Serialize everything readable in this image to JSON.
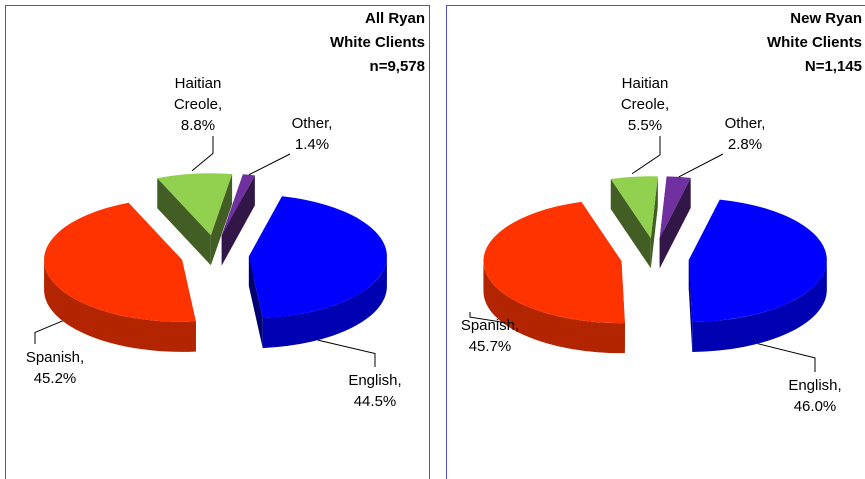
{
  "chart_data": [
    {
      "type": "pie",
      "title": [
        "All Ryan",
        "White Clients",
        "n=9,578"
      ],
      "labels": [
        "English, 44.5%",
        "Spanish, 45.2%",
        "Haitian Creole, 8.8%",
        "Other, 1.4%"
      ],
      "values": [
        44.5,
        45.2,
        8.8,
        1.4
      ],
      "colors": [
        "#0000ff",
        "#ff3300",
        "#92d050",
        "#7030a0"
      ]
    },
    {
      "type": "pie",
      "title": [
        "New Ryan",
        "White Clients",
        "N=1,145"
      ],
      "labels": [
        "English, 46.0%",
        "Spanish, 45.7%",
        "Haitian Creole, 5.5%",
        "Other, 2.8%"
      ],
      "values": [
        46.0,
        45.7,
        5.5,
        2.8
      ],
      "colors": [
        "#0000ff",
        "#ff3300",
        "#92d050",
        "#7030a0"
      ]
    }
  ]
}
